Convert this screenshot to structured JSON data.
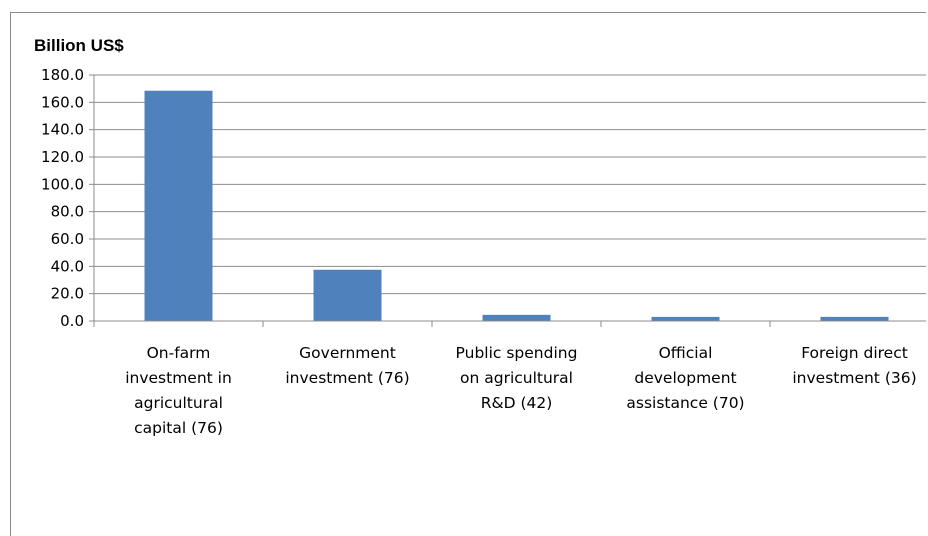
{
  "chart_data": {
    "type": "bar",
    "ylabel": "Billion US$",
    "ylim": [
      0,
      180
    ],
    "yticks": [
      "0.0",
      "20.0",
      "40.0",
      "60.0",
      "80.0",
      "100.0",
      "120.0",
      "140.0",
      "160.0",
      "180.0"
    ],
    "grid": true,
    "categories": [
      [
        "On-farm",
        "investment in",
        "agricultural",
        "capital (76)"
      ],
      [
        "Government",
        "investment (76)"
      ],
      [
        "Public spending",
        "on agricultural",
        "R&D (42)"
      ],
      [
        "Official",
        "development",
        "assistance (70)"
      ],
      [
        "Foreign direct",
        "investment (36)"
      ]
    ],
    "values": [
      168.5,
      37.5,
      4.5,
      3.0,
      3.0
    ],
    "color": "#4f81bd"
  }
}
